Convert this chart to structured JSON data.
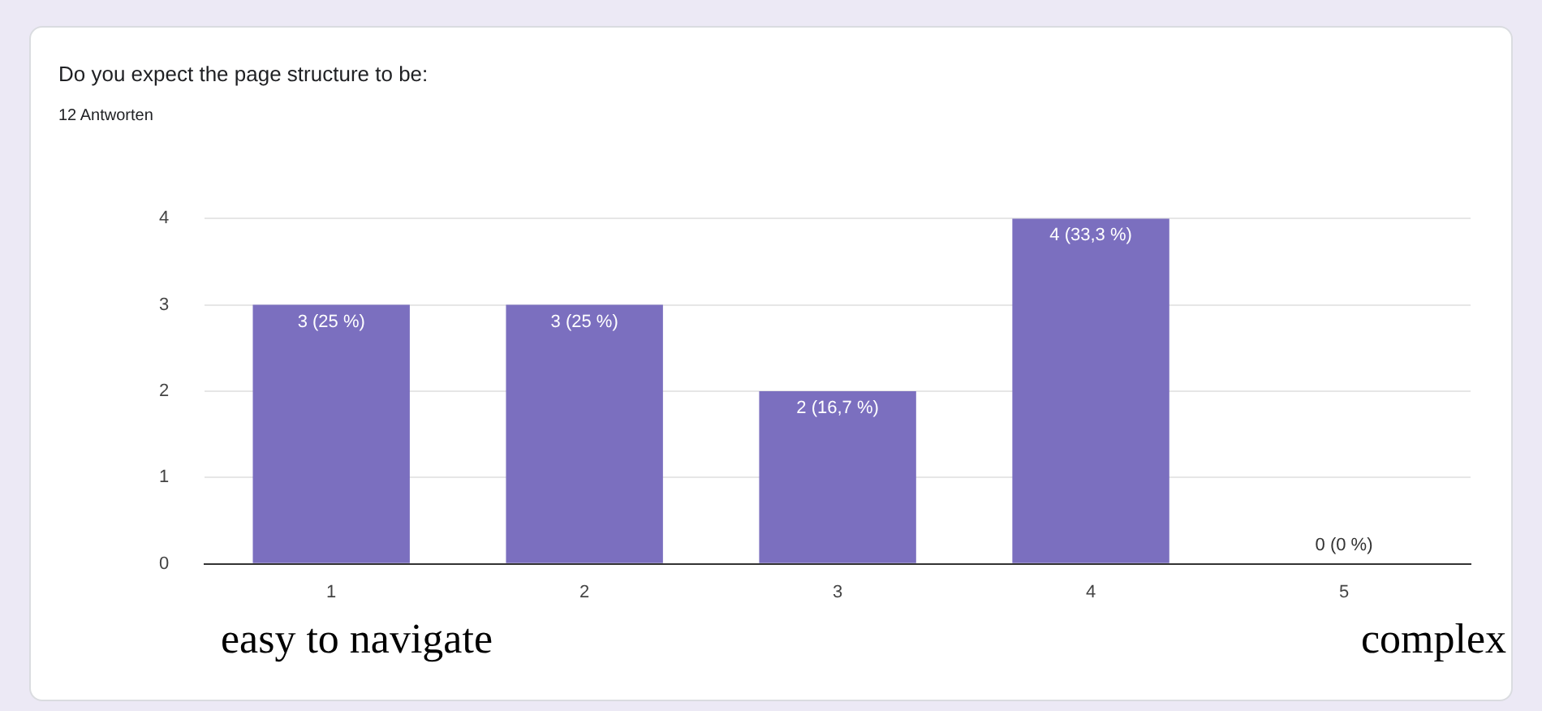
{
  "chart_data": {
    "type": "bar",
    "title": "Do you expect the page structure to be:",
    "subtitle": "12 Antworten",
    "categories": [
      "1",
      "2",
      "3",
      "4",
      "5"
    ],
    "values": [
      3,
      3,
      2,
      4,
      0
    ],
    "color": "#7b6fbf",
    "value_labels": [
      "3 (25 %)",
      "3 (25 %)",
      "2 (16,7 %)",
      "4 (33,3 %)",
      "0 (0 %)"
    ],
    "ylim": [
      0,
      4
    ],
    "yticks": [
      0,
      1,
      2,
      3,
      4
    ],
    "grid": "y",
    "legend": false,
    "annotations": [
      "easy to navigate",
      "complex"
    ]
  }
}
